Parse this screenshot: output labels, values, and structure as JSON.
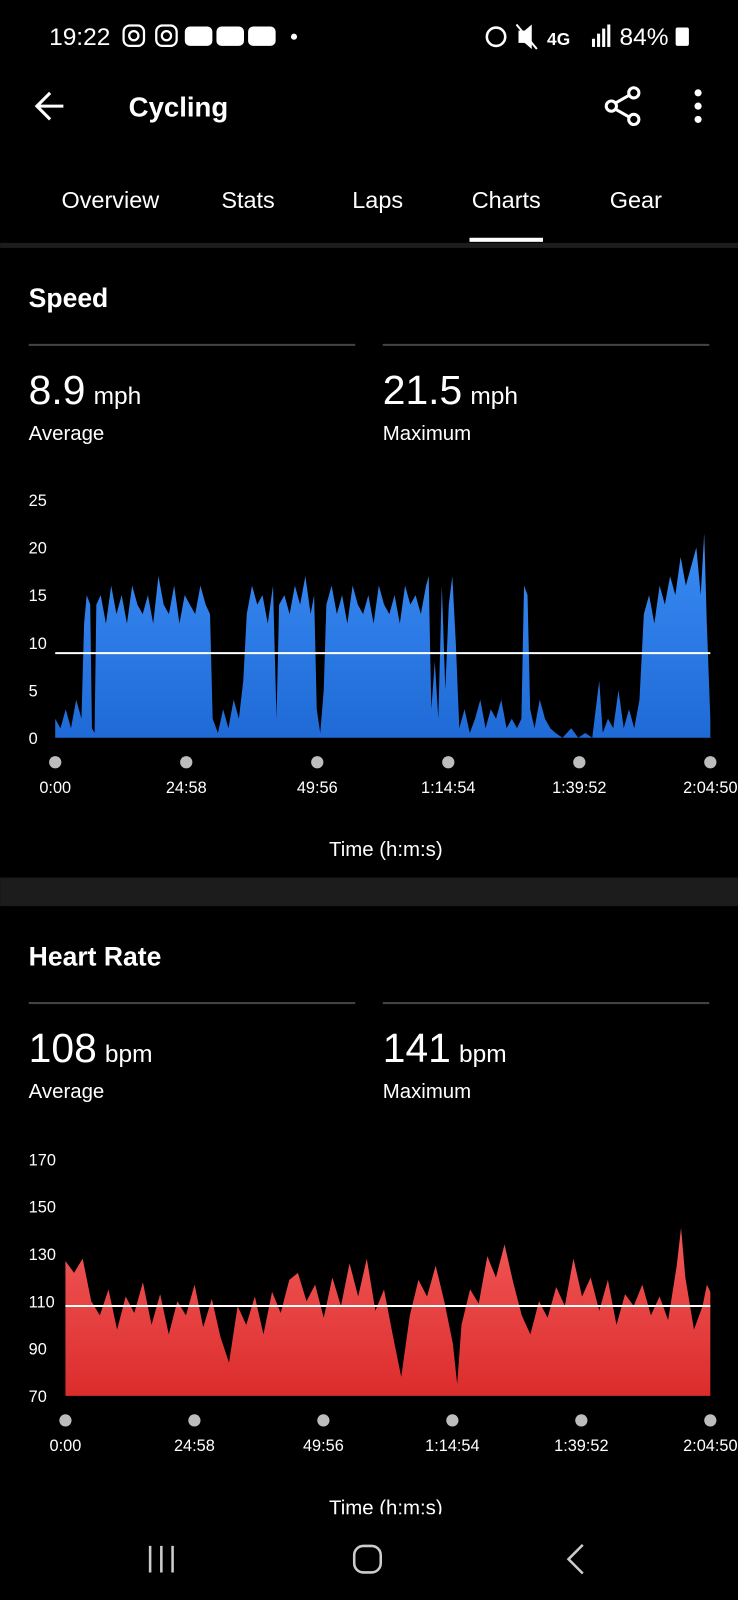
{
  "status_bar": {
    "time": "19:22",
    "network": "4G",
    "battery": "84%"
  },
  "header": {
    "title": "Cycling"
  },
  "tabs": [
    "Overview",
    "Stats",
    "Laps",
    "Charts",
    "Gear"
  ],
  "active_tab": 3,
  "chart_data": [
    {
      "type": "area",
      "title": "Speed",
      "stats": [
        {
          "value": 8.9,
          "unit": "mph",
          "label": "Average"
        },
        {
          "value": 21.5,
          "unit": "mph",
          "label": "Maximum"
        }
      ],
      "average_line": true,
      "x_label": "Time (h:m:s)",
      "color": "#2a80f0",
      "xlim": [
        0,
        7490
      ],
      "xticks": [
        {
          "value": 0,
          "label": "0:00"
        },
        {
          "value": 1498,
          "label": "24:58"
        },
        {
          "value": 2996,
          "label": "49:56"
        },
        {
          "value": 4494,
          "label": "1:14:54"
        },
        {
          "value": 5992,
          "label": "1:39:52"
        },
        {
          "value": 7490,
          "label": "2:04:50"
        }
      ],
      "ylim": [
        0,
        25
      ],
      "yticks": [
        0,
        5,
        10,
        15,
        20,
        25
      ],
      "x": [
        0,
        60,
        120,
        180,
        240,
        300,
        330,
        360,
        400,
        420,
        450,
        470,
        520,
        580,
        640,
        700,
        760,
        820,
        880,
        940,
        1000,
        1060,
        1120,
        1180,
        1240,
        1300,
        1360,
        1420,
        1480,
        1540,
        1600,
        1660,
        1720,
        1770,
        1800,
        1860,
        1920,
        1980,
        2040,
        2100,
        2150,
        2190,
        2250,
        2310,
        2370,
        2430,
        2490,
        2530,
        2560,
        2620,
        2680,
        2740,
        2800,
        2860,
        2920,
        2960,
        2990,
        3030,
        3070,
        3100,
        3160,
        3220,
        3280,
        3340,
        3400,
        3460,
        3520,
        3580,
        3640,
        3700,
        3760,
        3820,
        3880,
        3940,
        4000,
        4060,
        4120,
        4180,
        4240,
        4270,
        4300,
        4340,
        4380,
        4420,
        4460,
        4500,
        4540,
        4580,
        4620,
        4680,
        4740,
        4800,
        4860,
        4920,
        4980,
        5040,
        5100,
        5160,
        5220,
        5280,
        5330,
        5360,
        5400,
        5430,
        5480,
        5540,
        5600,
        5660,
        5720,
        5800,
        5900,
        5980,
        6060,
        6140,
        6220,
        6260,
        6320,
        6380,
        6440,
        6500,
        6560,
        6620,
        6680,
        6730,
        6790,
        6850,
        6910,
        6970,
        7030,
        7090,
        7150,
        7210,
        7270,
        7330,
        7380,
        7420,
        7450,
        7490
      ],
      "values": [
        2,
        1,
        3,
        1,
        4,
        2,
        12,
        15,
        14,
        1,
        0.5,
        14,
        15,
        12,
        16,
        13,
        15,
        12,
        16,
        14,
        13,
        15,
        12,
        17,
        14,
        13,
        16,
        12,
        15,
        14,
        13,
        16,
        14,
        13,
        2,
        0.5,
        3,
        1,
        4,
        2,
        6,
        13,
        16,
        14,
        15,
        12,
        16,
        2,
        14,
        15,
        13,
        16,
        14,
        17,
        13,
        15,
        3,
        0.5,
        5,
        14,
        16,
        13,
        15,
        12,
        16,
        14,
        13,
        15,
        12,
        16,
        14,
        13,
        15,
        12,
        16,
        14,
        15,
        13,
        16,
        17,
        3,
        8,
        2,
        16,
        5,
        14,
        17,
        10,
        1,
        3,
        0.5,
        2,
        4,
        1,
        3,
        2,
        4,
        1,
        2,
        1,
        2,
        16,
        15,
        3,
        1,
        4,
        2,
        1,
        0.5,
        0,
        1,
        0,
        0.5,
        0,
        6,
        0.5,
        2,
        1,
        5,
        1,
        3,
        1,
        4,
        13,
        15,
        12,
        16,
        14,
        17,
        15,
        19,
        16,
        18,
        20,
        15,
        21.5,
        12,
        2
      ]
    },
    {
      "type": "area",
      "title": "Heart Rate",
      "stats": [
        {
          "value": 108,
          "unit": "bpm",
          "label": "Average"
        },
        {
          "value": 141,
          "unit": "bpm",
          "label": "Maximum"
        }
      ],
      "average_line": true,
      "x_label": "Time (h:m:s)",
      "color": "#ea3d3d",
      "xlim": [
        0,
        7490
      ],
      "xticks": [
        {
          "value": 0,
          "label": "0:00"
        },
        {
          "value": 1498,
          "label": "24:58"
        },
        {
          "value": 2996,
          "label": "49:56"
        },
        {
          "value": 4494,
          "label": "1:14:54"
        },
        {
          "value": 5992,
          "label": "1:39:52"
        },
        {
          "value": 7490,
          "label": "2:04:50"
        }
      ],
      "ylim": [
        70,
        170
      ],
      "yticks": [
        70,
        90,
        110,
        130,
        150,
        170
      ],
      "x": [
        0,
        100,
        200,
        300,
        400,
        500,
        600,
        700,
        800,
        900,
        1000,
        1100,
        1200,
        1300,
        1400,
        1500,
        1600,
        1700,
        1800,
        1900,
        2000,
        2100,
        2200,
        2300,
        2400,
        2500,
        2600,
        2700,
        2800,
        2900,
        3000,
        3100,
        3200,
        3300,
        3400,
        3500,
        3600,
        3700,
        3800,
        3900,
        4000,
        4100,
        4200,
        4300,
        4400,
        4500,
        4550,
        4600,
        4700,
        4800,
        4900,
        5000,
        5100,
        5200,
        5300,
        5400,
        5500,
        5600,
        5700,
        5800,
        5900,
        6000,
        6100,
        6200,
        6300,
        6400,
        6500,
        6600,
        6700,
        6800,
        6900,
        7000,
        7100,
        7150,
        7200,
        7300,
        7400,
        7450,
        7490
      ],
      "values": [
        127,
        122,
        128,
        110,
        104,
        115,
        98,
        112,
        105,
        118,
        100,
        113,
        96,
        110,
        104,
        117,
        99,
        111,
        95,
        84,
        108,
        100,
        112,
        96,
        114,
        105,
        119,
        122,
        110,
        117,
        103,
        120,
        108,
        126,
        112,
        128,
        106,
        115,
        96,
        78,
        104,
        119,
        112,
        125,
        110,
        92,
        75,
        100,
        115,
        109,
        129,
        120,
        134,
        118,
        104,
        96,
        110,
        103,
        116,
        108,
        128,
        112,
        120,
        106,
        119,
        100,
        113,
        108,
        117,
        104,
        112,
        102,
        125,
        141,
        120,
        98,
        108,
        117,
        114
      ]
    }
  ]
}
